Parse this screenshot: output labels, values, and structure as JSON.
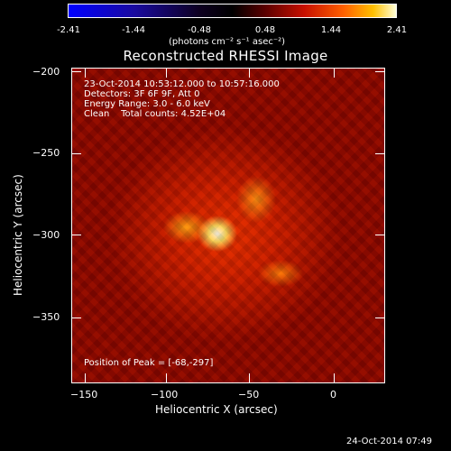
{
  "colorbar": {
    "tick_labels": [
      "-2.41",
      "-1.44",
      "-0.48",
      "0.48",
      "1.44",
      "2.41"
    ],
    "units_label": "(photons cm⁻² s⁻¹ asec⁻²)"
  },
  "plot": {
    "title": "Reconstructed RHESSI Image",
    "xlabel": "Heliocentric X (arcsec)",
    "ylabel": "Heliocentric Y (arcsec)",
    "x_ticks": [
      "−150",
      "−100",
      "−50",
      "0"
    ],
    "y_ticks": [
      "−200",
      "−250",
      "−300",
      "−350"
    ],
    "info": {
      "time_range": "23-Oct-2014 10:53:12.000 to 10:57:16.000",
      "detectors": "Detectors: 3F 6F 9F, Att 0",
      "energy": "Energy Range: 3.0 - 6.0 keV",
      "clean": "Clean    Total counts: 4.52E+04"
    },
    "peak": "Position of Peak = [-68,-297]"
  },
  "timestamp": "24-Oct-2014 07:49",
  "colors": {
    "background": "#000000",
    "foreground": "#ffffff",
    "colormap_low": "#0000ff",
    "colormap_mid": "#000000",
    "colormap_high": "#ffffff"
  }
}
